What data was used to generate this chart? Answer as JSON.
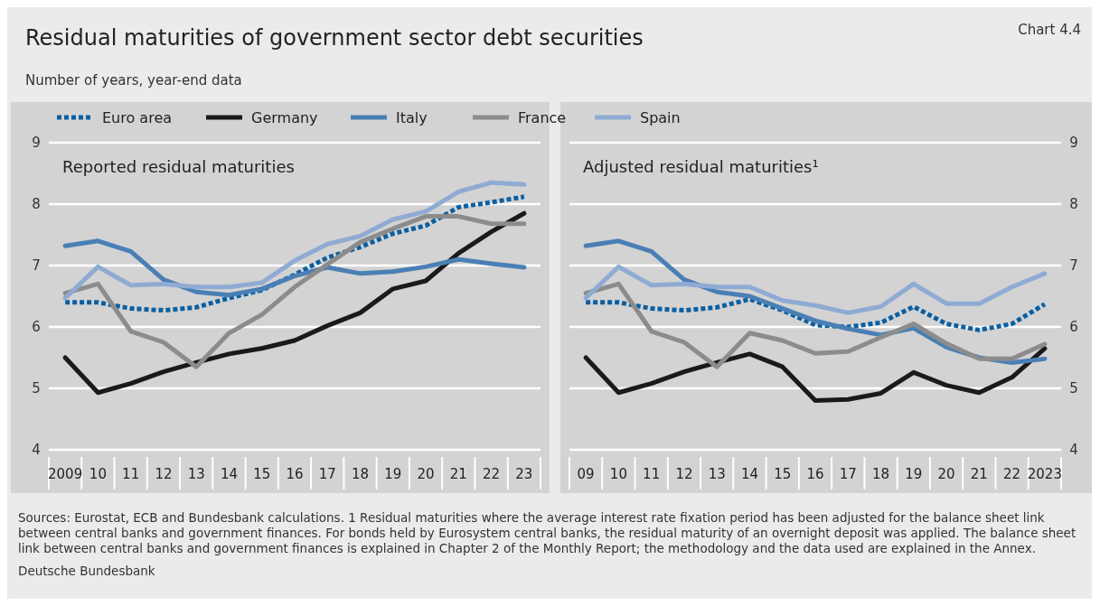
{
  "chart_data": [
    {
      "type": "line",
      "title": "Residual maturities of government sector debt securities",
      "subtitle": "Number of years, year-end data",
      "annotations": [
        "Reported residual maturities",
        "Chart 4.4",
        "Sources: Eurostat, ECB and Bundesbank calculations. 1 Residual maturities where the average interest rate fixation period has been adjusted for the balance sheet link between central banks and government finances. For bonds held by Eurosystem central banks, the residual maturity of an overnight deposit was applied. The balance sheet link between central banks and government finances is explained in Chapter 2 of the Monthly Report; the methodology and the data used are explained in the Annex.",
        "Deutsche Bundesbank"
      ],
      "categories": [
        "2009",
        "10",
        "11",
        "12",
        "13",
        "14",
        "15",
        "16",
        "17",
        "18",
        "19",
        "20",
        "21",
        "22",
        "23"
      ],
      "ylim": [
        4,
        9
      ],
      "yticks": [
        4,
        5,
        6,
        7,
        8,
        9
      ],
      "grid": "y",
      "legend": "top",
      "marker": "none",
      "series": [
        {
          "name": "Euro area",
          "color": "#0b5fa0",
          "line_style": "dotted",
          "values": [
            6.4,
            6.4,
            6.3,
            6.27,
            6.32,
            6.47,
            6.6,
            6.85,
            7.13,
            7.3,
            7.52,
            7.65,
            7.95,
            8.03,
            8.12
          ]
        },
        {
          "name": "Germany",
          "color": "#1a1a1a",
          "line_style": "solid",
          "values": [
            5.5,
            4.93,
            5.08,
            5.27,
            5.42,
            5.56,
            5.65,
            5.78,
            6.02,
            6.23,
            6.62,
            6.75,
            7.2,
            7.55,
            7.85
          ]
        },
        {
          "name": "Italy",
          "color": "#4a7fb5",
          "line_style": "solid",
          "values": [
            7.32,
            7.4,
            7.23,
            6.77,
            6.57,
            6.52,
            6.62,
            6.83,
            6.97,
            6.87,
            6.9,
            6.98,
            7.1,
            7.03,
            6.97
          ]
        },
        {
          "name": "France",
          "color": "#8c8c8c",
          "line_style": "solid",
          "values": [
            6.55,
            6.7,
            5.93,
            5.75,
            5.35,
            5.9,
            6.2,
            6.65,
            7.02,
            7.38,
            7.6,
            7.8,
            7.8,
            7.68,
            7.68
          ]
        },
        {
          "name": "Spain",
          "color": "#8fabd4",
          "line_style": "solid",
          "values": [
            6.47,
            6.98,
            6.68,
            6.7,
            6.65,
            6.65,
            6.72,
            7.08,
            7.35,
            7.48,
            7.75,
            7.88,
            8.2,
            8.35,
            8.32
          ]
        }
      ]
    },
    {
      "type": "line",
      "annotations": [
        "Adjusted residual maturities¹"
      ],
      "categories": [
        "09",
        "10",
        "11",
        "12",
        "13",
        "14",
        "15",
        "16",
        "17",
        "18",
        "19",
        "20",
        "21",
        "22",
        "2023"
      ],
      "ylim": [
        4,
        9
      ],
      "yticks": [
        4,
        5,
        6,
        7,
        8,
        9
      ],
      "grid": "y",
      "legend": false,
      "marker": "none",
      "series": [
        {
          "color": "#0b5fa0",
          "line_style": "dotted",
          "values": [
            6.4,
            6.4,
            6.3,
            6.27,
            6.32,
            6.45,
            6.27,
            6.03,
            6.0,
            6.07,
            6.33,
            6.05,
            5.95,
            6.05,
            6.37
          ]
        },
        {
          "color": "#1a1a1a",
          "line_style": "solid",
          "values": [
            5.5,
            4.93,
            5.08,
            5.27,
            5.42,
            5.56,
            5.35,
            4.8,
            4.82,
            4.92,
            5.26,
            5.05,
            4.93,
            5.18,
            5.65
          ]
        },
        {
          "color": "#4a7fb5",
          "line_style": "solid",
          "values": [
            7.32,
            7.4,
            7.23,
            6.77,
            6.57,
            6.5,
            6.3,
            6.1,
            5.97,
            5.87,
            5.98,
            5.67,
            5.5,
            5.42,
            5.48
          ]
        },
        {
          "color": "#8c8c8c",
          "line_style": "solid",
          "values": [
            6.55,
            6.7,
            5.93,
            5.75,
            5.35,
            5.9,
            5.78,
            5.57,
            5.6,
            5.83,
            6.05,
            5.73,
            5.48,
            5.48,
            5.72
          ]
        },
        {
          "color": "#8fabd4",
          "line_style": "solid",
          "values": [
            6.47,
            6.98,
            6.68,
            6.7,
            6.65,
            6.65,
            6.43,
            6.35,
            6.23,
            6.33,
            6.7,
            6.38,
            6.38,
            6.65,
            6.87
          ]
        }
      ]
    }
  ]
}
